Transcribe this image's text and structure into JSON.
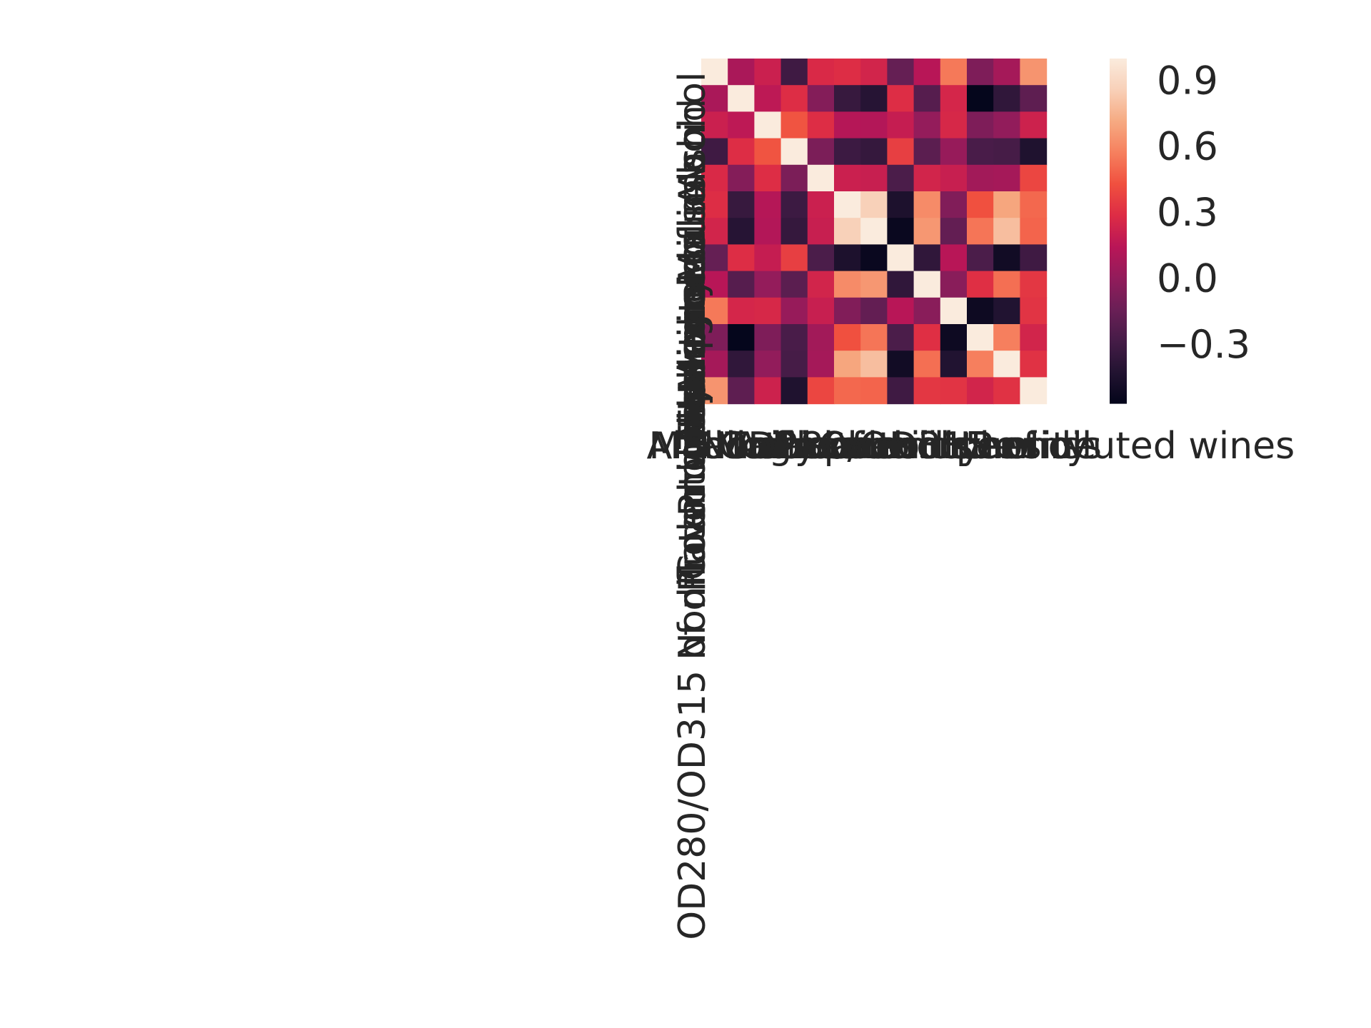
{
  "chart_data": {
    "type": "heatmap",
    "title": "",
    "xlabel": "",
    "ylabel": "",
    "labels": [
      "Alcohol",
      "Malic acid",
      "Ash",
      "Alcalinity of ash",
      "Magnesium",
      "Total phenols",
      "Flavanoids",
      "Nonflavanoid phenols",
      "Proanthocyanins",
      "Color intensity",
      "Hue",
      "OD280/OD315 of diluted wines",
      "Proline"
    ],
    "matrix": [
      [
        1.0,
        0.09,
        0.21,
        -0.31,
        0.27,
        0.29,
        0.24,
        -0.16,
        0.14,
        0.55,
        -0.07,
        0.07,
        0.64
      ],
      [
        0.09,
        1.0,
        0.16,
        0.29,
        -0.05,
        -0.34,
        -0.41,
        0.29,
        -0.22,
        0.25,
        -0.56,
        -0.37,
        -0.19
      ],
      [
        0.21,
        0.16,
        1.0,
        0.44,
        0.29,
        0.13,
        0.12,
        0.19,
        0.01,
        0.26,
        -0.07,
        0.0,
        0.22
      ],
      [
        -0.31,
        0.29,
        0.44,
        1.0,
        -0.08,
        -0.32,
        -0.35,
        0.36,
        -0.2,
        0.02,
        -0.27,
        -0.28,
        -0.44
      ],
      [
        0.27,
        -0.05,
        0.29,
        -0.08,
        1.0,
        0.21,
        0.2,
        -0.26,
        0.24,
        0.2,
        0.06,
        0.07,
        0.39
      ],
      [
        0.29,
        -0.34,
        0.13,
        -0.32,
        0.21,
        1.0,
        0.86,
        -0.45,
        0.61,
        -0.06,
        0.43,
        0.7,
        0.5
      ],
      [
        0.24,
        -0.41,
        0.12,
        -0.35,
        0.2,
        0.86,
        1.0,
        -0.54,
        0.65,
        -0.17,
        0.54,
        0.79,
        0.49
      ],
      [
        -0.16,
        0.29,
        0.19,
        0.36,
        -0.26,
        -0.45,
        -0.54,
        1.0,
        -0.37,
        0.14,
        -0.26,
        -0.5,
        -0.31
      ],
      [
        0.14,
        -0.22,
        0.01,
        -0.2,
        0.24,
        0.61,
        0.65,
        -0.37,
        1.0,
        -0.03,
        0.3,
        0.52,
        0.33
      ],
      [
        0.55,
        0.25,
        0.26,
        0.02,
        0.2,
        -0.06,
        -0.17,
        0.14,
        -0.03,
        1.0,
        -0.52,
        -0.43,
        0.32
      ],
      [
        -0.07,
        -0.56,
        -0.07,
        -0.27,
        0.06,
        0.43,
        0.54,
        -0.26,
        0.3,
        -0.52,
        1.0,
        0.57,
        0.24
      ],
      [
        0.07,
        -0.37,
        0.0,
        -0.28,
        0.07,
        0.7,
        0.79,
        -0.5,
        0.52,
        -0.43,
        0.57,
        1.0,
        0.31
      ],
      [
        0.64,
        -0.19,
        0.22,
        -0.44,
        0.39,
        0.5,
        0.49,
        -0.31,
        0.33,
        0.32,
        0.24,
        0.31,
        1.0
      ]
    ],
    "vmin": -0.57,
    "vmax": 1.0,
    "colorbar_ticks": [
      0.9,
      0.6,
      0.3,
      0.0,
      -0.3
    ],
    "colorbar_tick_labels": [
      "0.9",
      "0.6",
      "0.3",
      "0.0",
      "−0.3"
    ],
    "colormap": [
      "#03051a",
      "#221331",
      "#451c47",
      "#6a1f56",
      "#921c5b",
      "#b91657",
      "#dd2c45",
      "#f0503f",
      "#f6805e",
      "#f6aa82",
      "#f8d0b8",
      "#faebdd"
    ],
    "grid": false,
    "legend": "colorbar-right"
  }
}
